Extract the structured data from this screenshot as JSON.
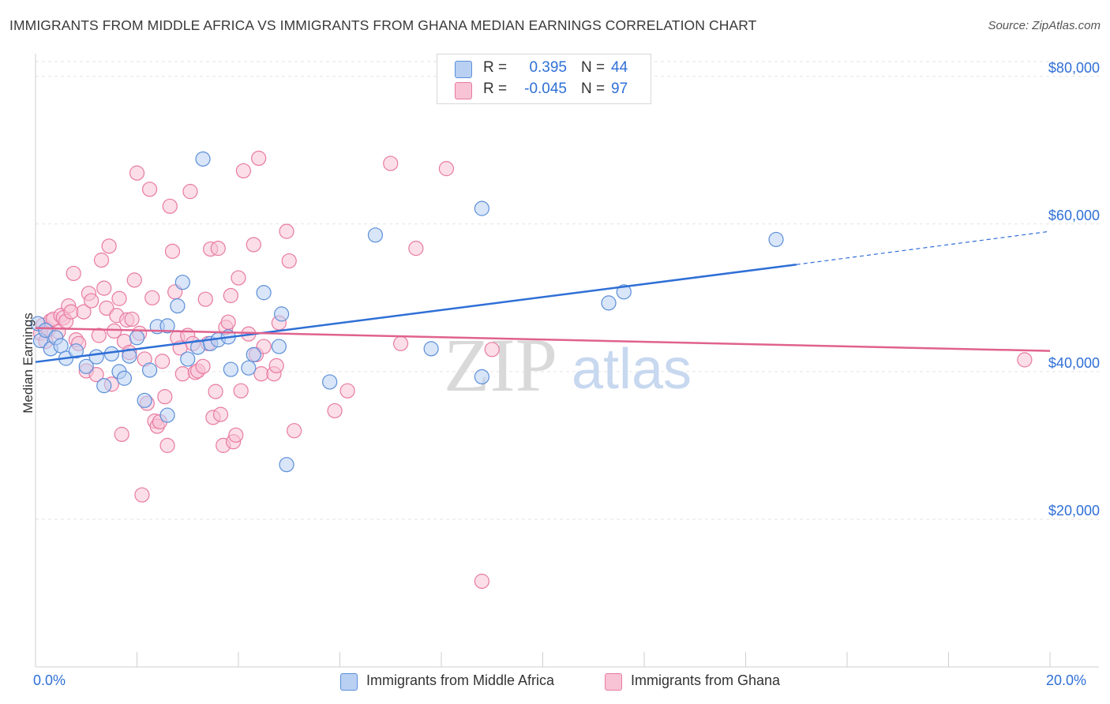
{
  "title": "IMMIGRANTS FROM MIDDLE AFRICA VS IMMIGRANTS FROM GHANA MEDIAN EARNINGS CORRELATION CHART",
  "source": "Source: ZipAtlas.com",
  "watermark": {
    "zip": "ZIP",
    "atlas": "atlas"
  },
  "colors": {
    "blue": "#5b8fd9",
    "blue_fill": "#b9d0f2",
    "blue_line": "#2f6fd6",
    "pink": "#e87aa1",
    "pink_fill": "#f8c3d5",
    "pink_line": "#e0628e",
    "tick_text": "#2f6fd6"
  },
  "legend_top": {
    "rows": [
      {
        "r_label": "R =",
        "r_value": "0.395",
        "n_label": "N =",
        "n_value": "44"
      },
      {
        "r_label": "R =",
        "r_value": "-0.045",
        "n_label": "N =",
        "n_value": "97"
      }
    ]
  },
  "legend_bottom": [
    {
      "label": "Immigrants from Middle Africa"
    },
    {
      "label": "Immigrants from Ghana"
    }
  ],
  "chart_data": {
    "type": "scatter",
    "title": "IMMIGRANTS FROM MIDDLE AFRICA VS IMMIGRANTS FROM GHANA MEDIAN EARNINGS CORRELATION CHART",
    "xlabel": "",
    "ylabel": "Median Earnings",
    "xlim": [
      0,
      20
    ],
    "ylim": [
      0,
      82000
    ],
    "x_tick_labels": [
      "0.0%",
      "20.0%"
    ],
    "y_ticks": [
      {
        "value": 20000,
        "label": "$20,000"
      },
      {
        "value": 40000,
        "label": "$40,000"
      },
      {
        "value": 60000,
        "label": "$60,000"
      },
      {
        "value": 80000,
        "label": "$80,000"
      }
    ],
    "grid": "horizontal dashed",
    "legend_position": "top-center",
    "series": [
      {
        "name": "Immigrants from Middle Africa",
        "color": "#5b8fd9",
        "trend": {
          "x": [
            0,
            15
          ],
          "y": [
            41300,
            54500
          ],
          "dashed_extension_to": [
            20,
            59000
          ]
        },
        "points": [
          [
            0.05,
            46500
          ],
          [
            0.1,
            44200
          ],
          [
            0.2,
            45600
          ],
          [
            0.3,
            43100
          ],
          [
            0.4,
            44600
          ],
          [
            0.5,
            43500
          ],
          [
            0.6,
            41800
          ],
          [
            0.8,
            42800
          ],
          [
            1.0,
            40700
          ],
          [
            1.2,
            42000
          ],
          [
            1.35,
            38100
          ],
          [
            1.5,
            42400
          ],
          [
            1.65,
            40000
          ],
          [
            1.75,
            39100
          ],
          [
            1.85,
            42100
          ],
          [
            2.0,
            44600
          ],
          [
            2.15,
            36100
          ],
          [
            2.25,
            40200
          ],
          [
            2.4,
            46100
          ],
          [
            2.6,
            46200
          ],
          [
            2.6,
            34100
          ],
          [
            2.8,
            48900
          ],
          [
            2.9,
            52100
          ],
          [
            3.0,
            41700
          ],
          [
            3.2,
            43300
          ],
          [
            3.3,
            68800
          ],
          [
            3.45,
            43800
          ],
          [
            3.6,
            44300
          ],
          [
            3.8,
            44700
          ],
          [
            3.85,
            40300
          ],
          [
            4.2,
            40500
          ],
          [
            4.3,
            42300
          ],
          [
            4.5,
            50700
          ],
          [
            4.8,
            43400
          ],
          [
            4.85,
            47800
          ],
          [
            4.95,
            27400
          ],
          [
            5.8,
            38600
          ],
          [
            6.7,
            58500
          ],
          [
            7.8,
            43100
          ],
          [
            8.8,
            39300
          ],
          [
            8.8,
            62100
          ],
          [
            11.3,
            49300
          ],
          [
            11.6,
            50800
          ],
          [
            14.6,
            57900
          ]
        ]
      },
      {
        "name": "Immigrants from Ghana",
        "color": "#e87aa1",
        "trend": {
          "x": [
            0,
            20
          ],
          "y": [
            45900,
            42800
          ]
        },
        "points": [
          [
            0.1,
            45200
          ],
          [
            0.15,
            46300
          ],
          [
            0.2,
            44100
          ],
          [
            0.25,
            45700
          ],
          [
            0.3,
            46900
          ],
          [
            0.35,
            47100
          ],
          [
            0.45,
            45400
          ],
          [
            0.5,
            47600
          ],
          [
            0.55,
            47300
          ],
          [
            0.6,
            46800
          ],
          [
            0.65,
            48900
          ],
          [
            0.7,
            48100
          ],
          [
            0.75,
            53300
          ],
          [
            0.8,
            44300
          ],
          [
            0.85,
            43800
          ],
          [
            0.95,
            48100
          ],
          [
            1.0,
            40100
          ],
          [
            1.05,
            50600
          ],
          [
            1.1,
            49600
          ],
          [
            1.2,
            39600
          ],
          [
            1.25,
            44900
          ],
          [
            1.3,
            55100
          ],
          [
            1.35,
            51300
          ],
          [
            1.4,
            48600
          ],
          [
            1.45,
            57000
          ],
          [
            1.5,
            38300
          ],
          [
            1.55,
            45500
          ],
          [
            1.6,
            47600
          ],
          [
            1.65,
            49900
          ],
          [
            1.7,
            31500
          ],
          [
            1.75,
            44100
          ],
          [
            1.8,
            47000
          ],
          [
            1.85,
            42600
          ],
          [
            1.9,
            47100
          ],
          [
            1.95,
            52400
          ],
          [
            2.0,
            66900
          ],
          [
            2.05,
            45200
          ],
          [
            2.1,
            23300
          ],
          [
            2.15,
            41700
          ],
          [
            2.2,
            35700
          ],
          [
            2.25,
            64700
          ],
          [
            2.3,
            50000
          ],
          [
            2.35,
            33300
          ],
          [
            2.4,
            32600
          ],
          [
            2.45,
            33200
          ],
          [
            2.5,
            41400
          ],
          [
            2.55,
            36600
          ],
          [
            2.6,
            30000
          ],
          [
            2.65,
            62400
          ],
          [
            2.7,
            56300
          ],
          [
            2.75,
            50800
          ],
          [
            2.8,
            44600
          ],
          [
            2.85,
            43200
          ],
          [
            2.9,
            39700
          ],
          [
            3.0,
            44900
          ],
          [
            3.05,
            64400
          ],
          [
            3.1,
            43800
          ],
          [
            3.15,
            39900
          ],
          [
            3.2,
            40100
          ],
          [
            3.3,
            40700
          ],
          [
            3.35,
            49800
          ],
          [
            3.4,
            43800
          ],
          [
            3.45,
            56600
          ],
          [
            3.5,
            33800
          ],
          [
            3.55,
            37300
          ],
          [
            3.6,
            56700
          ],
          [
            3.65,
            34200
          ],
          [
            3.7,
            30000
          ],
          [
            3.75,
            46000
          ],
          [
            3.8,
            46700
          ],
          [
            3.85,
            50300
          ],
          [
            3.9,
            30500
          ],
          [
            3.95,
            31400
          ],
          [
            4.0,
            52700
          ],
          [
            4.05,
            37400
          ],
          [
            4.1,
            67200
          ],
          [
            4.2,
            45100
          ],
          [
            4.3,
            57200
          ],
          [
            4.35,
            42300
          ],
          [
            4.4,
            68900
          ],
          [
            4.45,
            39700
          ],
          [
            4.5,
            43400
          ],
          [
            4.7,
            39700
          ],
          [
            4.75,
            40800
          ],
          [
            4.8,
            46600
          ],
          [
            4.95,
            59000
          ],
          [
            5.0,
            55000
          ],
          [
            5.1,
            32000
          ],
          [
            5.9,
            34700
          ],
          [
            6.15,
            37400
          ],
          [
            7.0,
            68200
          ],
          [
            7.2,
            43800
          ],
          [
            7.5,
            56700
          ],
          [
            8.1,
            67500
          ],
          [
            8.8,
            11600
          ],
          [
            9.0,
            43000
          ],
          [
            19.5,
            41600
          ]
        ]
      }
    ]
  }
}
